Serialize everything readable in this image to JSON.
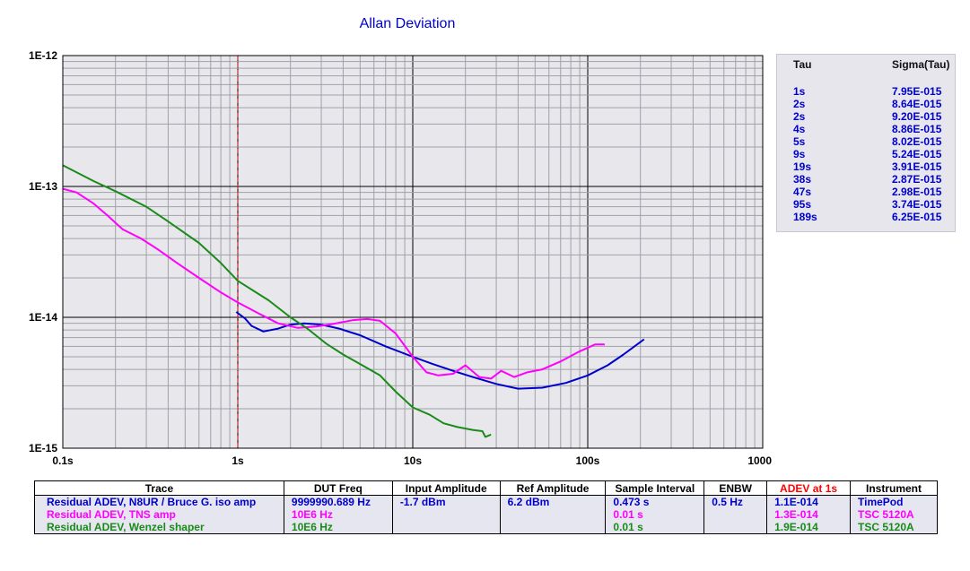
{
  "chart_data": {
    "type": "line",
    "title": "Allan Deviation",
    "x_scale": "log",
    "y_scale": "log",
    "xlim": [
      0.1,
      1000
    ],
    "ylim": [
      1e-15,
      1e-12
    ],
    "x_tick_labels": [
      "0.1s",
      "1s",
      "10s",
      "100s",
      "1000s"
    ],
    "y_tick_labels": [
      "1E-12",
      "1E-13",
      "1E-14",
      "1E-15"
    ],
    "grid": true,
    "marker_line": {
      "x": 1,
      "color": "#cc0000",
      "style": "dashed"
    },
    "series": [
      {
        "name": "Residual ADEV, N8UR / Bruce G. iso amp",
        "color": "#0000cc",
        "x": [
          0.98,
          1.1,
          1.2,
          1.4,
          1.7,
          2.0,
          2.4,
          3.0,
          3.8,
          5.0,
          7,
          10,
          13,
          17,
          22,
          30,
          40,
          55,
          75,
          100,
          130,
          160,
          210
        ],
        "y": [
          1.1e-14,
          9.8e-15,
          8.6e-15,
          7.8e-15,
          8.2e-15,
          8.8e-15,
          9e-15,
          8.8e-15,
          8.2e-15,
          7.3e-15,
          6e-15,
          5e-15,
          4.4e-15,
          3.9e-15,
          3.5e-15,
          3.1e-15,
          2.85e-15,
          2.9e-15,
          3.15e-15,
          3.6e-15,
          4.3e-15,
          5.2e-15,
          6.8e-15
        ]
      },
      {
        "name": "Residual ADEV, TNS amp",
        "color": "#ff00ff",
        "x": [
          0.1,
          0.12,
          0.15,
          0.18,
          0.22,
          0.28,
          0.35,
          0.45,
          0.6,
          0.8,
          1.0,
          1.3,
          1.7,
          2.2,
          2.8,
          3.5,
          4.5,
          5.5,
          6.5,
          8,
          10,
          12,
          14,
          17,
          20,
          24,
          28,
          32,
          38,
          45,
          55,
          70,
          90,
          110,
          125
        ],
        "y": [
          9.6e-14,
          9e-14,
          7.4e-14,
          6e-14,
          4.7e-14,
          4e-14,
          3.3e-14,
          2.6e-14,
          2e-14,
          1.55e-14,
          1.3e-14,
          1.08e-14,
          9e-15,
          8.3e-15,
          8.5e-15,
          8.9e-15,
          9.5e-15,
          9.7e-15,
          9.4e-15,
          7.5e-15,
          5e-15,
          3.8e-15,
          3.6e-15,
          3.7e-15,
          4.3e-15,
          3.5e-15,
          3.4e-15,
          3.9e-15,
          3.5e-15,
          3.8e-15,
          4e-15,
          4.6e-15,
          5.5e-15,
          6.2e-15,
          6.2e-15
        ]
      },
      {
        "name": "Residual ADEV, Wenzel shaper",
        "color": "#1a8a1a",
        "x": [
          0.1,
          0.15,
          0.2,
          0.3,
          0.4,
          0.6,
          0.8,
          1.0,
          1.5,
          2.0,
          2.5,
          3.2,
          4,
          5,
          6.5,
          8,
          10,
          12.5,
          15,
          18,
          22,
          25,
          26,
          28
        ],
        "y": [
          1.45e-13,
          1.1e-13,
          9.2e-14,
          7e-14,
          5.4e-14,
          3.7e-14,
          2.6e-14,
          1.9e-14,
          1.35e-14,
          1e-14,
          8.2e-15,
          6.3e-15,
          5.2e-15,
          4.4e-15,
          3.6e-15,
          2.7e-15,
          2.05e-15,
          1.8e-15,
          1.55e-15,
          1.45e-15,
          1.38e-15,
          1.35e-15,
          1.22e-15,
          1.27e-15
        ]
      }
    ]
  },
  "tau_table": {
    "headers": [
      "Tau",
      "Sigma(Tau)"
    ],
    "rows": [
      [
        "1s",
        "7.95E-015"
      ],
      [
        "2s",
        "8.64E-015"
      ],
      [
        "2s",
        "9.20E-015"
      ],
      [
        "4s",
        "8.86E-015"
      ],
      [
        "5s",
        "8.02E-015"
      ],
      [
        "9s",
        "5.24E-015"
      ],
      [
        "19s",
        "3.91E-015"
      ],
      [
        "38s",
        "2.87E-015"
      ],
      [
        "47s",
        "2.98E-015"
      ],
      [
        "95s",
        "3.74E-015"
      ],
      [
        "189s",
        "6.25E-015"
      ]
    ]
  },
  "trace_table": {
    "headers": [
      "Trace",
      "DUT Freq",
      "Input Amplitude",
      "Ref Amplitude",
      "Sample Interval",
      "ENBW",
      "ADEV at 1s",
      "Instrument"
    ],
    "rows": [
      {
        "color": "#0000cc",
        "cells": [
          "Residual ADEV, N8UR / Bruce G. iso amp",
          "9999990.689 Hz",
          "-1.7 dBm",
          "6.2 dBm",
          "0.473 s",
          "0.5 Hz",
          "1.1E-014",
          "TimePod"
        ]
      },
      {
        "color": "#ff00ff",
        "cells": [
          "Residual ADEV, TNS amp",
          "10E6 Hz",
          "",
          "",
          "0.01 s",
          "",
          "1.3E-014",
          "TSC 5120A"
        ]
      },
      {
        "color": "#1a8a1a",
        "cells": [
          "Residual ADEV, Wenzel shaper",
          "10E6 Hz",
          "",
          "",
          "0.01 s",
          "",
          "1.9E-014",
          "TSC 5120A"
        ]
      }
    ],
    "header_colors": {
      "adev_at_1s": "#ff0000"
    }
  }
}
